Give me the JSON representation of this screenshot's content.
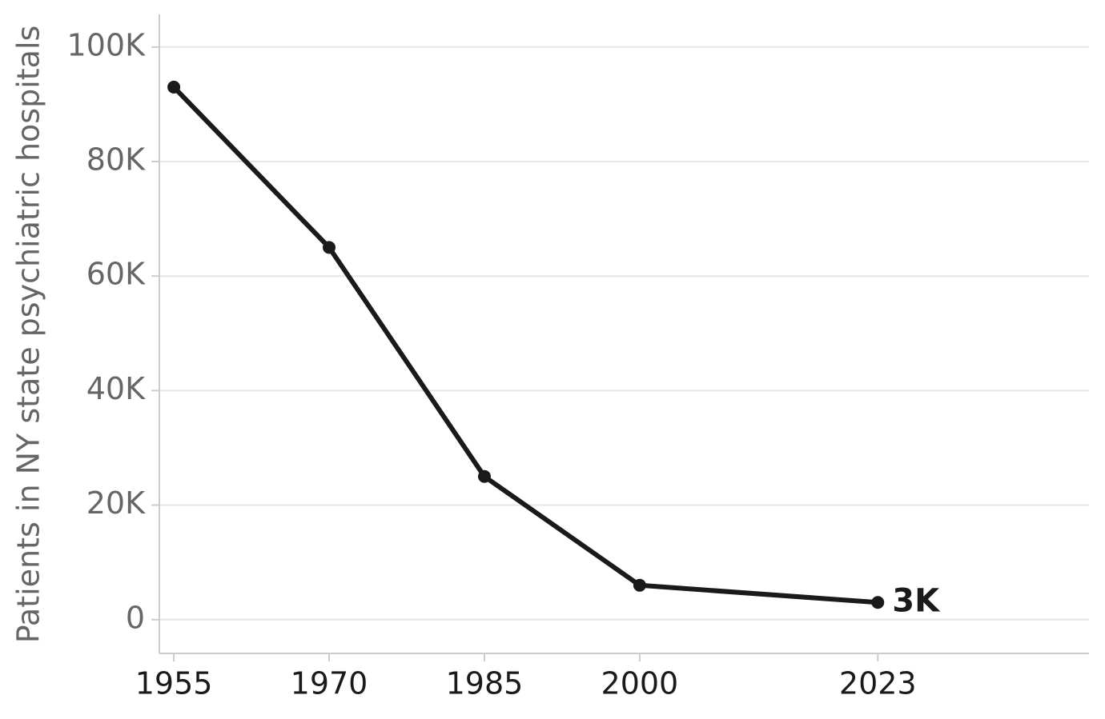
{
  "chart_data": {
    "type": "line",
    "y_label": "Patients in NY state psychiatric hospitals",
    "x": [
      1955,
      1970,
      1985,
      2000,
      2023
    ],
    "series": [
      {
        "color": "#1a1a1a",
        "values": [
          93000,
          65000,
          25000,
          6000,
          3000
        ],
        "value_labels": [
          null,
          null,
          null,
          null,
          "3K"
        ]
      }
    ],
    "xlim": [
      1953.6,
      2043.4
    ],
    "xticks": [
      1955,
      1970,
      1985,
      2000,
      2023
    ],
    "ylim": [
      -5900,
      105700
    ],
    "yticks": [
      0,
      {
        "value": 20000,
        "label": "20K"
      },
      {
        "value": 40000,
        "label": "40K"
      },
      {
        "value": 60000,
        "label": "60K"
      },
      {
        "value": 80000,
        "label": "80K"
      },
      {
        "value": 100000,
        "label": "100K"
      }
    ],
    "grid": true
  }
}
